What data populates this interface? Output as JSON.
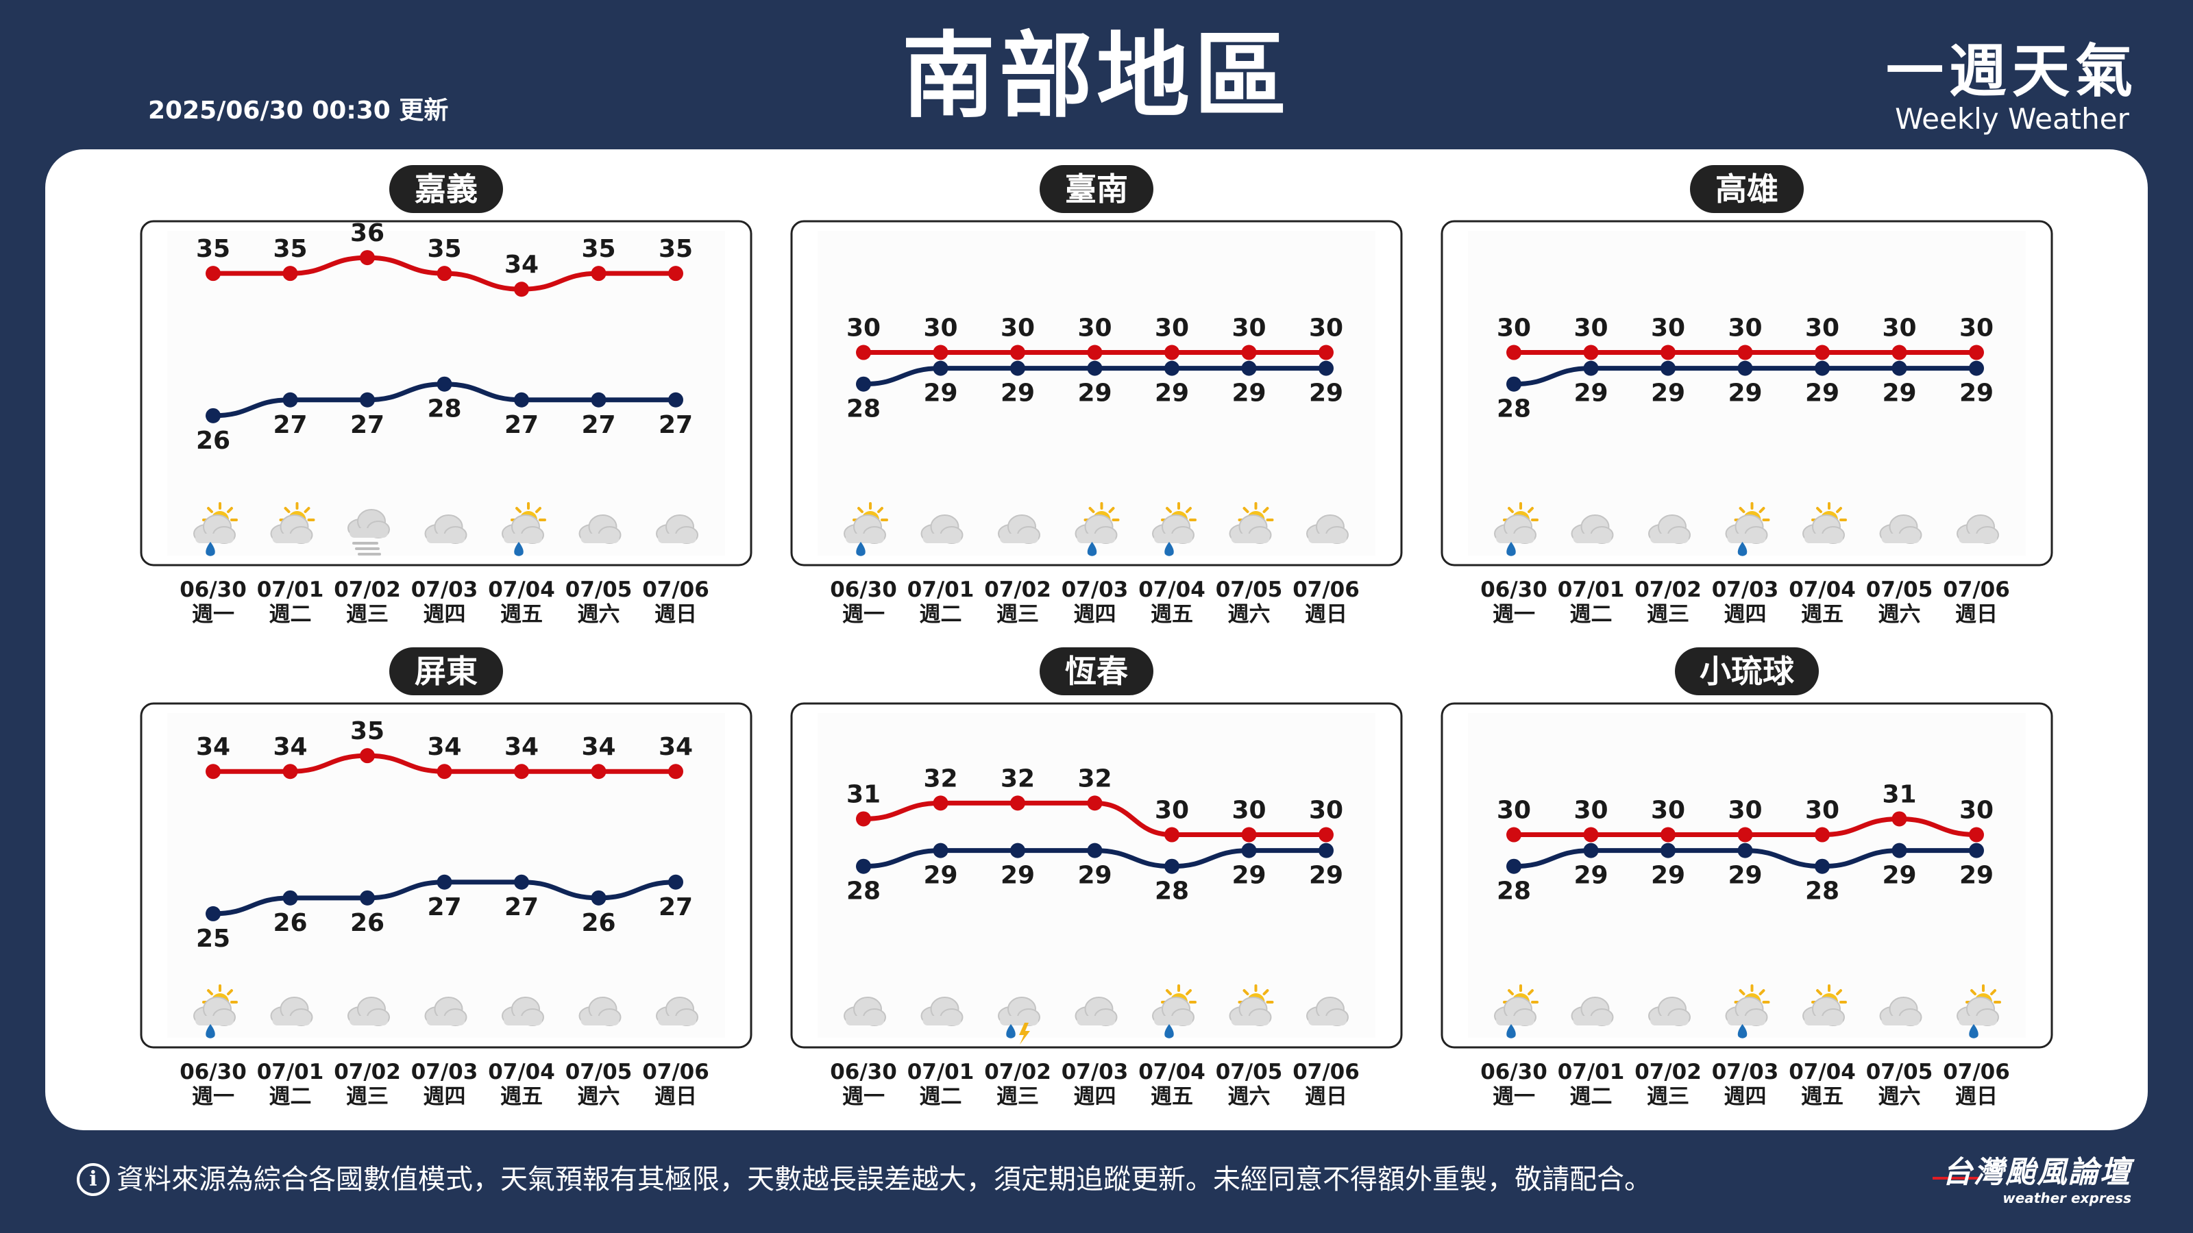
{
  "header": {
    "updated": "2025/06/30 00:30 更新",
    "title": "南部地區",
    "brand_zh": "一週天氣",
    "brand_en": "Weekly Weather"
  },
  "footer": {
    "info_icon": "info-icon",
    "note": "資料來源為綜合各國數值模式，天氣預報有其極限，天數越長誤差越大，須定期追蹤更新。未經同意不得額外重製，敬請配合。",
    "logo_zh": "台灣颱風論壇",
    "logo_en": "weather express"
  },
  "colors": {
    "background": "#233557",
    "high": "#d10a10",
    "low": "#0f2557",
    "pill": "#222222"
  },
  "chart_data": [
    {
      "type": "line",
      "title": "嘉義",
      "categories": [
        "06/30",
        "07/01",
        "07/02",
        "07/03",
        "07/04",
        "07/05",
        "07/06"
      ],
      "weekdays": [
        "週一",
        "週二",
        "週三",
        "週四",
        "週五",
        "週六",
        "週日"
      ],
      "series": [
        {
          "key": "high",
          "values": [
            35,
            35,
            36,
            35,
            34,
            35,
            35
          ]
        },
        {
          "key": "low",
          "values": [
            26,
            27,
            27,
            28,
            27,
            27,
            27
          ]
        }
      ],
      "ylim": [
        24,
        37
      ],
      "icons": [
        "partly-sunny-rain-icon",
        "partly-sunny-icon",
        "fog-icon",
        "cloudy-icon",
        "partly-sunny-rain-icon",
        "cloudy-icon",
        "cloudy-icon"
      ]
    },
    {
      "type": "line",
      "title": "臺南",
      "categories": [
        "06/30",
        "07/01",
        "07/02",
        "07/03",
        "07/04",
        "07/05",
        "07/06"
      ],
      "weekdays": [
        "週一",
        "週二",
        "週三",
        "週四",
        "週五",
        "週六",
        "週日"
      ],
      "series": [
        {
          "key": "high",
          "values": [
            30,
            30,
            30,
            30,
            30,
            30,
            30
          ]
        },
        {
          "key": "low",
          "values": [
            28,
            29,
            29,
            29,
            29,
            29,
            29
          ]
        }
      ],
      "ylim": [
        24,
        37
      ],
      "icons": [
        "partly-sunny-rain-icon",
        "cloudy-icon",
        "cloudy-icon",
        "partly-sunny-rain-icon",
        "partly-sunny-rain-icon",
        "partly-sunny-icon",
        "cloudy-icon"
      ]
    },
    {
      "type": "line",
      "title": "高雄",
      "categories": [
        "06/30",
        "07/01",
        "07/02",
        "07/03",
        "07/04",
        "07/05",
        "07/06"
      ],
      "weekdays": [
        "週一",
        "週二",
        "週三",
        "週四",
        "週五",
        "週六",
        "週日"
      ],
      "series": [
        {
          "key": "high",
          "values": [
            30,
            30,
            30,
            30,
            30,
            30,
            30
          ]
        },
        {
          "key": "low",
          "values": [
            28,
            29,
            29,
            29,
            29,
            29,
            29
          ]
        }
      ],
      "ylim": [
        24,
        37
      ],
      "icons": [
        "partly-sunny-rain-icon",
        "cloudy-icon",
        "cloudy-icon",
        "partly-sunny-rain-icon",
        "partly-sunny-icon",
        "cloudy-icon",
        "cloudy-icon"
      ]
    },
    {
      "type": "line",
      "title": "屏東",
      "categories": [
        "06/30",
        "07/01",
        "07/02",
        "07/03",
        "07/04",
        "07/05",
        "07/06"
      ],
      "weekdays": [
        "週一",
        "週二",
        "週三",
        "週四",
        "週五",
        "週六",
        "週日"
      ],
      "series": [
        {
          "key": "high",
          "values": [
            34,
            34,
            35,
            34,
            34,
            34,
            34
          ]
        },
        {
          "key": "low",
          "values": [
            25,
            26,
            26,
            27,
            27,
            26,
            27
          ]
        }
      ],
      "ylim": [
        24,
        37
      ],
      "icons": [
        "partly-sunny-rain-icon",
        "cloudy-icon",
        "cloudy-icon",
        "cloudy-icon",
        "cloudy-icon",
        "cloudy-icon",
        "cloudy-icon"
      ]
    },
    {
      "type": "line",
      "title": "恆春",
      "categories": [
        "06/30",
        "07/01",
        "07/02",
        "07/03",
        "07/04",
        "07/05",
        "07/06"
      ],
      "weekdays": [
        "週一",
        "週二",
        "週三",
        "週四",
        "週五",
        "週六",
        "週日"
      ],
      "series": [
        {
          "key": "high",
          "values": [
            31,
            32,
            32,
            32,
            30,
            30,
            30
          ]
        },
        {
          "key": "low",
          "values": [
            28,
            29,
            29,
            29,
            28,
            29,
            29
          ]
        }
      ],
      "ylim": [
        24,
        37
      ],
      "icons": [
        "cloudy-icon",
        "cloudy-icon",
        "thunderstorm-icon",
        "cloudy-icon",
        "partly-sunny-rain-icon",
        "partly-sunny-icon",
        "cloudy-icon"
      ]
    },
    {
      "type": "line",
      "title": "小琉球",
      "categories": [
        "06/30",
        "07/01",
        "07/02",
        "07/03",
        "07/04",
        "07/05",
        "07/06"
      ],
      "weekdays": [
        "週一",
        "週二",
        "週三",
        "週四",
        "週五",
        "週六",
        "週日"
      ],
      "series": [
        {
          "key": "high",
          "values": [
            30,
            30,
            30,
            30,
            30,
            31,
            30
          ]
        },
        {
          "key": "low",
          "values": [
            28,
            29,
            29,
            29,
            28,
            29,
            29
          ]
        }
      ],
      "ylim": [
        24,
        37
      ],
      "icons": [
        "partly-sunny-rain-icon",
        "cloudy-icon",
        "cloudy-icon",
        "partly-sunny-rain-icon",
        "partly-sunny-icon",
        "cloudy-icon",
        "partly-sunny-rain-icon"
      ]
    }
  ]
}
